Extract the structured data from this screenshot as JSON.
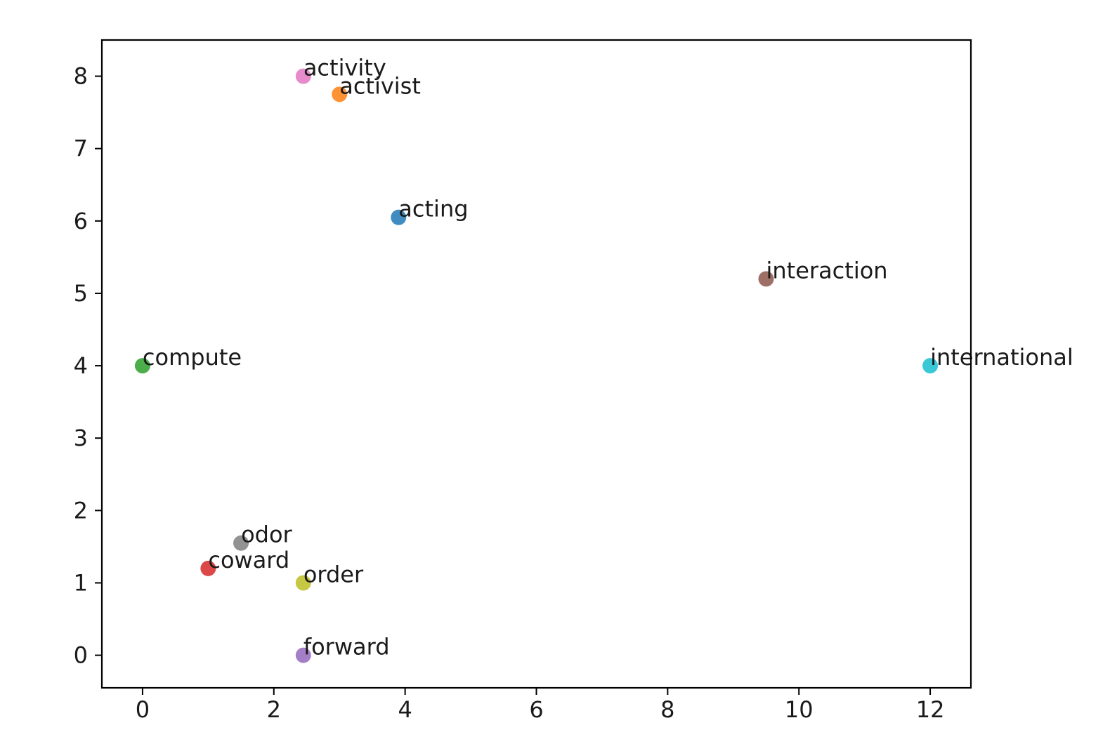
{
  "chart_data": {
    "type": "scatter",
    "title": "",
    "xlabel": "",
    "ylabel": "",
    "xlim": [
      -0.62,
      12.62
    ],
    "ylim": [
      -0.45,
      8.5
    ],
    "x_ticks": [
      0,
      2,
      4,
      6,
      8,
      10,
      12
    ],
    "y_ticks": [
      0,
      1,
      2,
      3,
      4,
      5,
      6,
      7,
      8
    ],
    "grid": false,
    "points": [
      {
        "label": "acting",
        "x": 3.9,
        "y": 6.05,
        "color": "#1f77b4"
      },
      {
        "label": "activist",
        "x": 3.0,
        "y": 7.75,
        "color": "#ff7f0e"
      },
      {
        "label": "compute",
        "x": 0.0,
        "y": 4.0,
        "color": "#2ca02c"
      },
      {
        "label": "coward",
        "x": 1.0,
        "y": 1.2,
        "color": "#d62728"
      },
      {
        "label": "forward",
        "x": 2.45,
        "y": 0.0,
        "color": "#9467bd"
      },
      {
        "label": "interaction",
        "x": 9.5,
        "y": 5.2,
        "color": "#8c564b"
      },
      {
        "label": "activity",
        "x": 2.45,
        "y": 8.0,
        "color": "#e377c2"
      },
      {
        "label": "odor",
        "x": 1.5,
        "y": 1.55,
        "color": "#7f7f7f"
      },
      {
        "label": "order",
        "x": 2.45,
        "y": 1.0,
        "color": "#bcbd22"
      },
      {
        "label": "international",
        "x": 12.0,
        "y": 4.0,
        "color": "#17becf"
      }
    ]
  }
}
